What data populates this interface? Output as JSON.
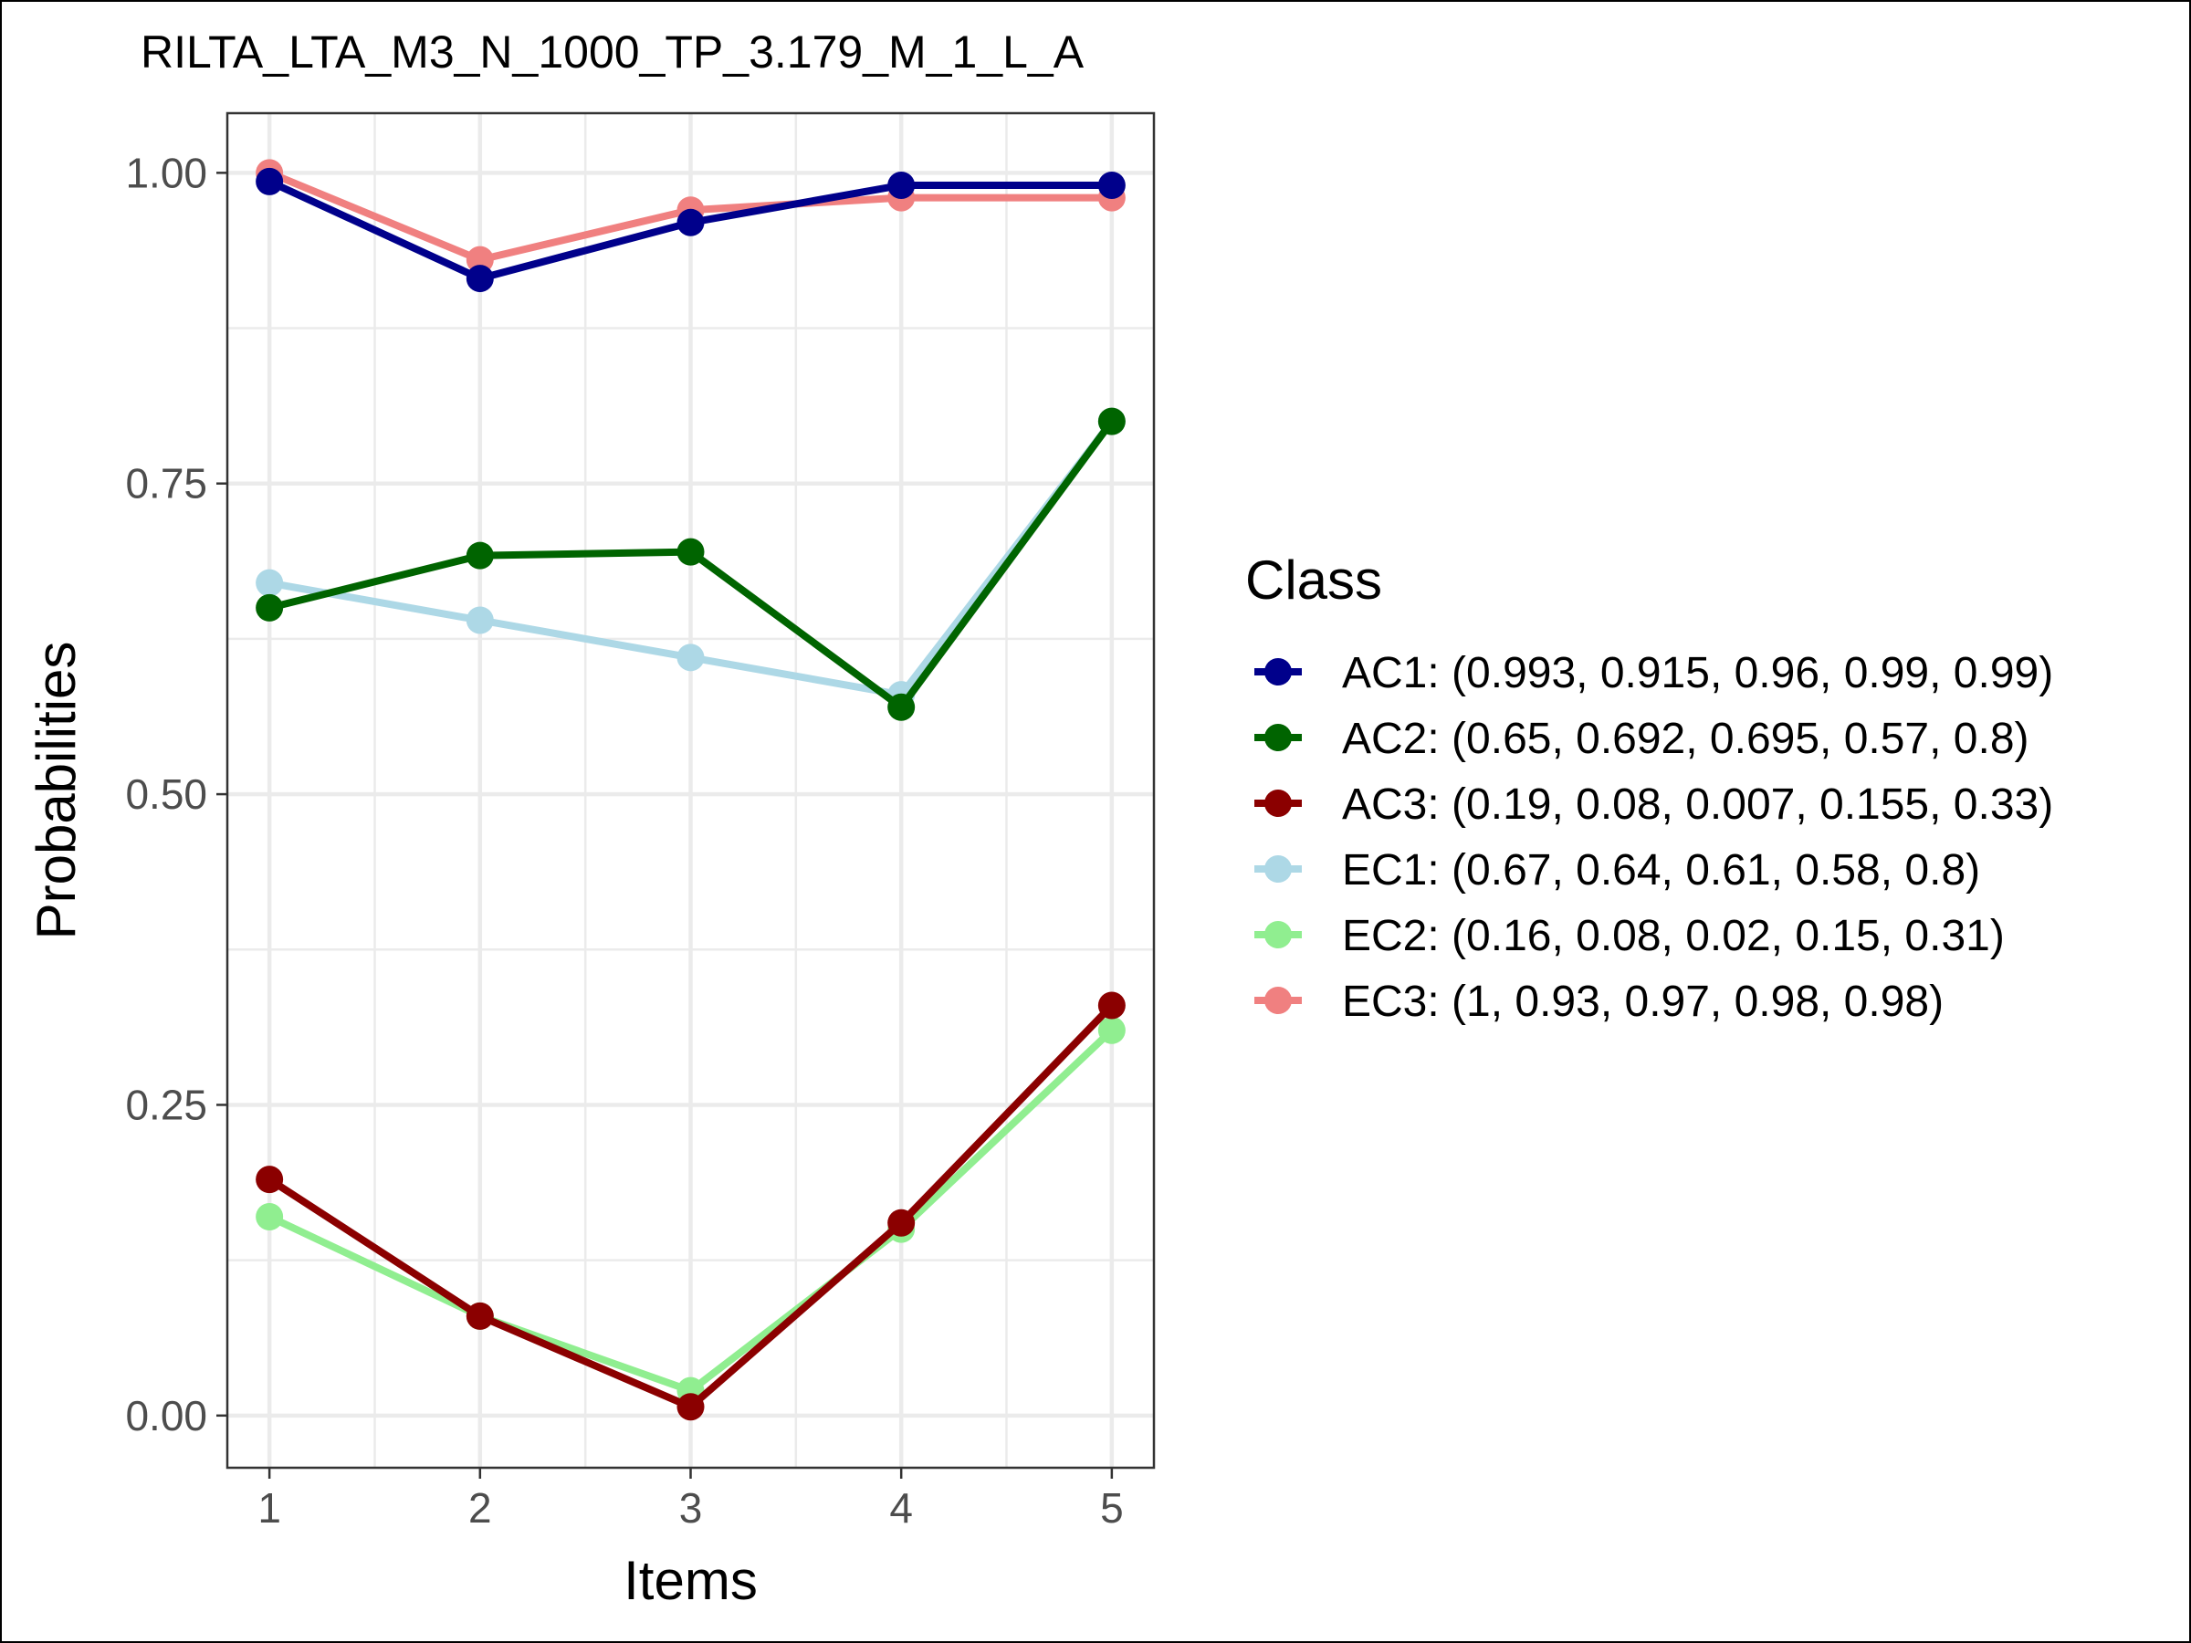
{
  "chart_data": {
    "type": "line",
    "title": "RILTA_LTA_M3_N_1000_TP_3.179_M_1_L_A",
    "xlabel": "Items",
    "ylabel": "Probabilities",
    "x": [
      1,
      2,
      3,
      4,
      5
    ],
    "x_tick_labels": [
      "1",
      "2",
      "3",
      "4",
      "5"
    ],
    "y_ticks": [
      0,
      0.25,
      0.5,
      0.75,
      1
    ],
    "y_tick_labels": [
      "0.00",
      "0.25",
      "0.50",
      "0.75",
      "1.00"
    ],
    "xlim": [
      0.8,
      5.2
    ],
    "ylim": [
      -0.042,
      1.048
    ],
    "grid": true,
    "legend": {
      "title": "Class",
      "position": "right"
    },
    "series": [
      {
        "name": "AC1: (0.993, 0.915, 0.96, 0.99, 0.99)",
        "color": "#00008b",
        "values": [
          0.993,
          0.915,
          0.96,
          0.99,
          0.99
        ]
      },
      {
        "name": "AC2: (0.65, 0.692, 0.695, 0.57, 0.8)",
        "color": "#006400",
        "values": [
          0.65,
          0.692,
          0.695,
          0.57,
          0.8
        ]
      },
      {
        "name": "AC3: (0.19, 0.08, 0.007, 0.155, 0.33)",
        "color": "#8b0000",
        "values": [
          0.19,
          0.08,
          0.007,
          0.155,
          0.33
        ]
      },
      {
        "name": "EC1: (0.67, 0.64, 0.61, 0.58, 0.8)",
        "color": "#add8e6",
        "values": [
          0.67,
          0.64,
          0.61,
          0.58,
          0.8
        ]
      },
      {
        "name": "EC2: (0.16, 0.08, 0.02, 0.15, 0.31)",
        "color": "#90ee90",
        "values": [
          0.16,
          0.08,
          0.02,
          0.15,
          0.31
        ]
      },
      {
        "name": "EC3: (1, 0.93, 0.97, 0.98, 0.98)",
        "color": "#f08080",
        "values": [
          1,
          0.93,
          0.97,
          0.98,
          0.98
        ]
      }
    ],
    "draw_order": [
      3,
      4,
      5,
      0,
      1,
      2
    ]
  }
}
